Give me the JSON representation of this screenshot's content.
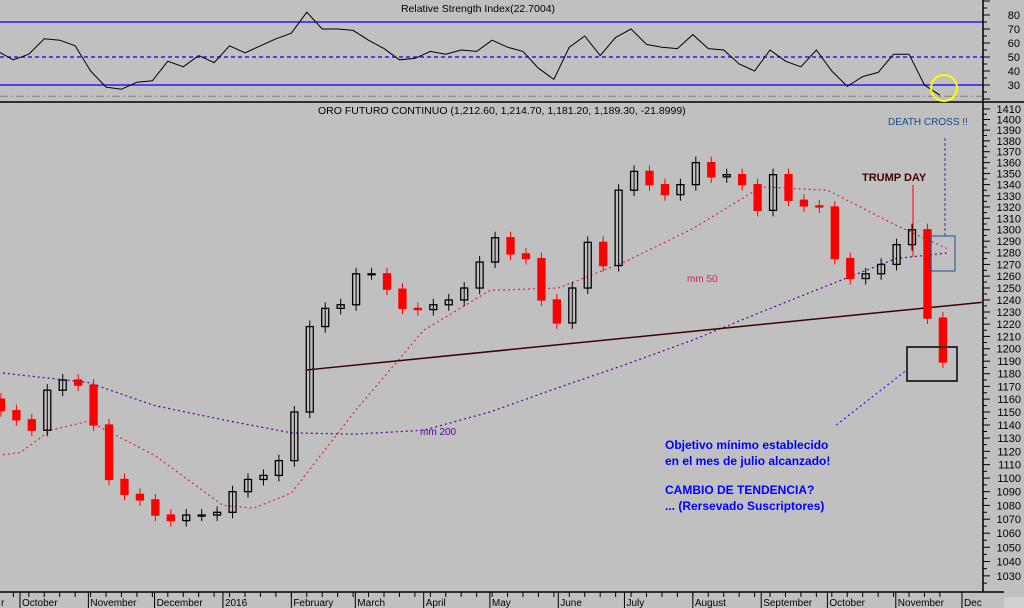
{
  "chart_data": [
    {
      "type": "line",
      "panel": "rsi",
      "title": "Relative Strength Index(22.7004)",
      "ylim": [
        17,
        92
      ],
      "ticks": [
        30,
        40,
        50,
        60,
        70,
        80
      ],
      "levels": {
        "overbought": 75,
        "mid": 50,
        "oversold": 30,
        "lower_dashdot": 22
      },
      "dates": [
        "2015-09-21",
        "2015-09-28",
        "2015-10-05",
        "2015-10-12",
        "2015-10-19",
        "2015-10-26",
        "2015-11-02",
        "2015-11-09",
        "2015-11-16",
        "2015-11-23",
        "2015-11-30",
        "2015-12-07",
        "2015-12-14",
        "2015-12-21",
        "2015-12-28",
        "2016-01-04",
        "2016-01-11",
        "2016-01-18",
        "2016-01-25",
        "2016-02-01",
        "2016-02-08",
        "2016-02-15",
        "2016-02-22",
        "2016-02-29",
        "2016-03-07",
        "2016-03-14",
        "2016-03-21",
        "2016-03-28",
        "2016-04-04",
        "2016-04-11",
        "2016-04-18",
        "2016-04-25",
        "2016-05-02",
        "2016-05-09",
        "2016-05-16",
        "2016-05-23",
        "2016-05-30",
        "2016-06-06",
        "2016-06-13",
        "2016-06-20",
        "2016-06-27",
        "2016-07-04",
        "2016-07-11",
        "2016-07-18",
        "2016-07-25",
        "2016-08-01",
        "2016-08-08",
        "2016-08-15",
        "2016-08-22",
        "2016-08-29",
        "2016-09-05",
        "2016-09-12",
        "2016-09-19",
        "2016-09-26",
        "2016-10-03",
        "2016-10-10",
        "2016-10-17",
        "2016-10-24",
        "2016-10-31",
        "2016-11-07",
        "2016-11-14",
        "2016-11-21"
      ],
      "values": [
        54,
        48,
        52,
        63,
        62,
        58,
        40,
        28.5,
        27,
        32,
        33,
        47,
        43,
        51,
        46,
        58,
        53,
        58,
        63,
        67,
        82,
        70,
        70,
        69,
        62,
        56,
        48,
        49,
        54,
        52,
        55,
        54,
        62,
        57,
        54,
        42,
        34,
        57,
        65,
        51,
        64,
        70,
        59,
        57,
        56,
        66,
        56,
        55,
        45,
        40,
        55,
        47,
        43,
        55,
        40,
        29,
        36,
        39,
        52,
        52,
        30,
        22.7
      ],
      "colors": {
        "line": "#000000",
        "levels": "#0000ff",
        "highlight_circle": "#ffff00"
      }
    },
    {
      "type": "candlestick",
      "panel": "price",
      "title": "ORO FUTURO CONTINUO (1,212.60, 1,214.70, 1,181.20, 1,189.30, -21.8999)",
      "y_scale": "log",
      "ylim": [
        1020,
        1418
      ],
      "ticks": [
        1030,
        1040,
        1050,
        1060,
        1070,
        1080,
        1090,
        1100,
        1110,
        1120,
        1130,
        1140,
        1150,
        1160,
        1170,
        1180,
        1190,
        1200,
        1210,
        1220,
        1230,
        1240,
        1250,
        1260,
        1270,
        1280,
        1290,
        1300,
        1310,
        1320,
        1330,
        1340,
        1350,
        1360,
        1370,
        1380,
        1390,
        1400,
        1410
      ],
      "closes": [
        1151,
        1144,
        1136,
        1167,
        1175,
        1171,
        1140,
        1099,
        1088,
        1084,
        1073,
        1069,
        1073,
        1073,
        1075,
        1090,
        1099,
        1102,
        1113,
        1150,
        1218,
        1233,
        1236,
        1262,
        1262,
        1249,
        1233,
        1232,
        1236,
        1240,
        1250,
        1272,
        1293,
        1279,
        1275,
        1240,
        1221,
        1250,
        1289,
        1269,
        1335,
        1352,
        1340,
        1331,
        1340,
        1360,
        1347,
        1349,
        1340,
        1317,
        1349,
        1326,
        1321,
        1320,
        1275,
        1258,
        1262,
        1270,
        1287,
        1300,
        1225,
        1189.3
      ],
      "first_open": 1160,
      "mm50": {
        "label": "mm 50",
        "dates": [
          "2015-09-21",
          "2015-10-01",
          "2015-10-15",
          "2015-11-01",
          "2015-12-01",
          "2016-01-01",
          "2016-01-15",
          "2016-02-01",
          "2016-03-01",
          "2016-04-01",
          "2016-05-01",
          "2016-06-01",
          "2016-07-01",
          "2016-08-01",
          "2016-09-01",
          "2016-10-01",
          "2016-11-01",
          "2016-11-25"
        ],
        "values": [
          1117,
          1119,
          1136,
          1143,
          1117,
          1080,
          1078,
          1089,
          1151,
          1215,
          1248,
          1250,
          1272,
          1301,
          1338,
          1335,
          1304,
          1283
        ]
      },
      "mm200": {
        "label": "mm 200",
        "dates": [
          "2015-09-21",
          "2015-10-01",
          "2015-11-01",
          "2015-12-01",
          "2016-01-01",
          "2016-02-01",
          "2016-03-01",
          "2016-04-01",
          "2016-05-01",
          "2016-06-01",
          "2016-07-01",
          "2016-08-01",
          "2016-09-01",
          "2016-10-01",
          "2016-11-01",
          "2016-11-25"
        ],
        "values": [
          1181,
          1179,
          1173,
          1155,
          1144,
          1134,
          1133,
          1136,
          1150,
          1169,
          1187,
          1207,
          1230,
          1252,
          1275,
          1280
        ]
      },
      "trendline": [
        [
          "2016-02-08",
          1183
        ],
        [
          "2016-12-10",
          1238
        ]
      ],
      "target_line": [
        [
          "2016-10-05",
          1140
        ],
        [
          "2016-11-06",
          1183
        ]
      ],
      "annotations": {
        "death_cross": "DEATH CROSS !!",
        "trump_day": "TRUMP DAY",
        "note_line1": "Objetivo mínimo establecido",
        "note_line2": "en el mes de julio alcanzado!",
        "note_line3": "CAMBIO DE TENDENCIA?",
        "note_line4": "... (Rersevado Suscriptores)"
      },
      "colors": {
        "up": "#000000",
        "down": "#ff0000",
        "mm50": "#e0204a",
        "mm200": "#5a00a0",
        "trendline": "#400000",
        "annotation": "#0000ff",
        "death_cross": "#1a4a8a",
        "trump_day": "#400000",
        "background": "#c0c0c0"
      }
    }
  ],
  "x_axis": {
    "months": [
      {
        "label": "r",
        "date": "2015-09-28"
      },
      {
        "label": "October",
        "date": "2015-10-01"
      },
      {
        "label": "November",
        "date": "2015-11-01"
      },
      {
        "label": "December",
        "date": "2015-12-01"
      },
      {
        "label": "2016",
        "date": "2016-01-01"
      },
      {
        "label": "February",
        "date": "2016-02-01"
      },
      {
        "label": "March",
        "date": "2016-03-01"
      },
      {
        "label": "April",
        "date": "2016-04-01"
      },
      {
        "label": "May",
        "date": "2016-05-01"
      },
      {
        "label": "June",
        "date": "2016-06-01"
      },
      {
        "label": "July",
        "date": "2016-07-01"
      },
      {
        "label": "August",
        "date": "2016-08-01"
      },
      {
        "label": "September",
        "date": "2016-09-01"
      },
      {
        "label": "October",
        "date": "2016-10-01"
      },
      {
        "label": "November",
        "date": "2016-11-01"
      },
      {
        "label": "Dec",
        "date": "2016-12-01"
      }
    ]
  }
}
